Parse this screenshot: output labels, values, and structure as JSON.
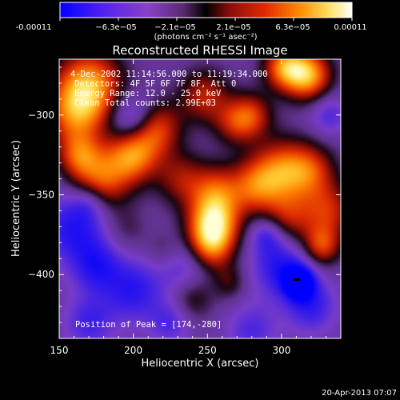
{
  "colorbar": {
    "tick_labels": [
      "-0.00011",
      "−6.3e−05",
      "−2.1e−05",
      "2.1e−05",
      "6.3e−05",
      "0.00011"
    ],
    "unit_label": "(photons cm⁻² s⁻¹ asec⁻²)",
    "colors": [
      "#0000ff",
      "#7a3bd6",
      "#9e4fb0",
      "#000000",
      "#9a1010",
      "#ff3a00",
      "#ffa000",
      "#ffffa0",
      "#ffffff"
    ],
    "range": [
      -0.00011,
      0.00011
    ]
  },
  "chart_data": {
    "type": "heatmap",
    "title": "Reconstructed RHESSI Image",
    "xlabel": "Heliocentric X (arcsec)",
    "ylabel": "Heliocentric Y (arcsec)",
    "xlim": [
      150,
      340
    ],
    "ylim": [
      -440,
      -265
    ],
    "x_ticks": [
      150,
      200,
      250,
      300
    ],
    "y_ticks": [
      -300,
      -350,
      -400
    ],
    "x_tick_labels": [
      "150",
      "200",
      "250",
      "300"
    ],
    "y_tick_labels": [
      "−300",
      "−350",
      "−400"
    ],
    "annotations": {
      "time_range": "4-Dec-2002 11:14:56.000 to 11:19:34.000",
      "detectors": "Detectors: 4F 5F 6F 7F 8F, Att 0",
      "energy": "Energy Range: 12.0 - 25.0 keV",
      "clean": "Clean     Total counts: 2.99E+03",
      "peak": "Position of Peak = [174,-280]"
    },
    "peak": [
      174,
      -280
    ],
    "marker": [
      310,
      -403
    ],
    "grid": false,
    "blobs": [
      {
        "x": 170,
        "y": -282,
        "a": 0.95,
        "s": 16
      },
      {
        "x": 160,
        "y": -300,
        "a": 0.6,
        "s": 14
      },
      {
        "x": 178,
        "y": -340,
        "a": 0.75,
        "s": 14
      },
      {
        "x": 163,
        "y": -325,
        "a": 0.55,
        "s": 10
      },
      {
        "x": 200,
        "y": -325,
        "a": 0.8,
        "s": 12
      },
      {
        "x": 232,
        "y": -340,
        "a": 0.45,
        "s": 12
      },
      {
        "x": 215,
        "y": -308,
        "a": 0.7,
        "s": 12
      },
      {
        "x": 254,
        "y": -368,
        "a": 1.0,
        "s": 12
      },
      {
        "x": 252,
        "y": -383,
        "a": 0.65,
        "s": 11
      },
      {
        "x": 256,
        "y": -348,
        "a": 0.6,
        "s": 12
      },
      {
        "x": 282,
        "y": -345,
        "a": 0.6,
        "s": 12
      },
      {
        "x": 300,
        "y": -335,
        "a": 0.75,
        "s": 14
      },
      {
        "x": 305,
        "y": -365,
        "a": 0.5,
        "s": 12
      },
      {
        "x": 320,
        "y": -335,
        "a": 0.55,
        "s": 12
      },
      {
        "x": 332,
        "y": -360,
        "a": 0.55,
        "s": 12
      },
      {
        "x": 318,
        "y": -275,
        "a": 0.95,
        "s": 11
      },
      {
        "x": 302,
        "y": -270,
        "a": 0.8,
        "s": 10
      },
      {
        "x": 280,
        "y": -300,
        "a": 0.55,
        "s": 10
      },
      {
        "x": 248,
        "y": -288,
        "a": 0.55,
        "s": 12
      },
      {
        "x": 268,
        "y": -305,
        "a": 0.45,
        "s": 10
      },
      {
        "x": 327,
        "y": -382,
        "a": 0.65,
        "s": 9
      },
      {
        "x": 240,
        "y": -415,
        "a": 0.35,
        "s": 10
      },
      {
        "x": 265,
        "y": -405,
        "a": 0.3,
        "s": 8
      },
      {
        "x": 220,
        "y": -385,
        "a": 0.2,
        "s": 8
      },
      {
        "x": 195,
        "y": -372,
        "a": 0.2,
        "s": 10
      },
      {
        "x": 200,
        "y": -302,
        "a": -0.55,
        "s": 11
      },
      {
        "x": 160,
        "y": -370,
        "a": -0.55,
        "s": 16
      },
      {
        "x": 175,
        "y": -395,
        "a": -0.45,
        "s": 12
      },
      {
        "x": 200,
        "y": -410,
        "a": -0.5,
        "s": 14
      },
      {
        "x": 235,
        "y": -395,
        "a": -0.35,
        "s": 12
      },
      {
        "x": 300,
        "y": -395,
        "a": -0.55,
        "s": 14
      },
      {
        "x": 320,
        "y": -420,
        "a": -0.45,
        "s": 12
      },
      {
        "x": 312,
        "y": -405,
        "a": -0.9,
        "s": 7
      },
      {
        "x": 280,
        "y": -435,
        "a": -0.35,
        "s": 12
      },
      {
        "x": 170,
        "y": -430,
        "a": -0.4,
        "s": 12
      },
      {
        "x": 225,
        "y": -430,
        "a": -0.35,
        "s": 10
      },
      {
        "x": 332,
        "y": -300,
        "a": -0.35,
        "s": 9
      },
      {
        "x": 290,
        "y": -375,
        "a": -0.4,
        "s": 8
      },
      {
        "x": 170,
        "y": -355,
        "a": -0.3,
        "s": 8
      }
    ]
  },
  "timestamp": "20-Apr-2013 07:07"
}
